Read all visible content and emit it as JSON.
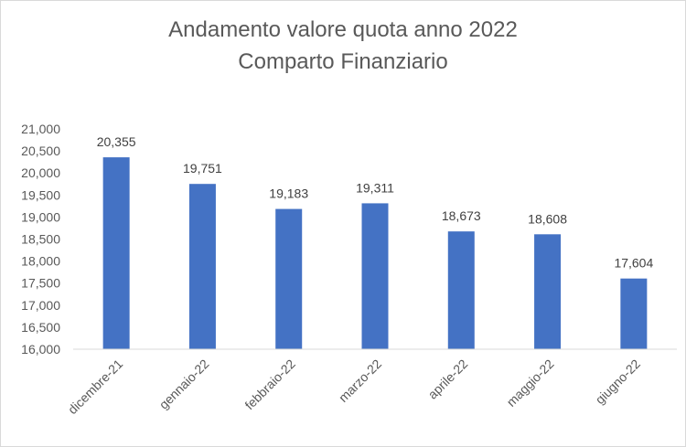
{
  "chart_data": {
    "type": "bar",
    "title": "Andamento valore quota anno 2022",
    "subtitle": "Comparto Finanziario",
    "categories": [
      "dicembre-21",
      "gennaio-22",
      "febbraio-22",
      "marzo-22",
      "aprile-22",
      "maggio-22",
      "giugno-22"
    ],
    "values": [
      20.355,
      19.751,
      19.183,
      19.311,
      18.673,
      18.608,
      17.604
    ],
    "data_labels": [
      "20,355",
      "19,751",
      "19,183",
      "19,311",
      "18,673",
      "18,608",
      "17,604"
    ],
    "y_ticks": [
      16,
      16.5,
      17,
      17.5,
      18,
      18.5,
      19,
      19.5,
      20,
      20.5,
      21
    ],
    "y_tick_labels": [
      "16,000",
      "16,500",
      "17,000",
      "17,500",
      "18,000",
      "18,500",
      "19,000",
      "19,500",
      "20,000",
      "20,500",
      "21,000"
    ],
    "ylim": [
      16,
      21
    ],
    "xlabel": "",
    "ylabel": "",
    "grid": false,
    "legend": "none",
    "colors": {
      "bar": "#4472c4",
      "text": "#595959",
      "axis": "#d9d9d9"
    }
  }
}
